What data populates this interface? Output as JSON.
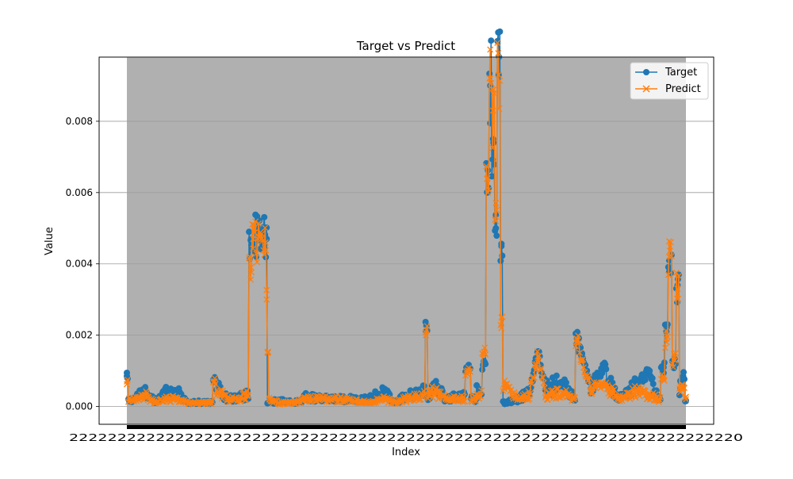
{
  "chart_data": {
    "type": "line",
    "title": "Target vs Predict",
    "xlabel": "Index",
    "ylabel": "Value",
    "ylim": [
      -0.0005,
      0.0098
    ],
    "y_ticks": [
      "0.000",
      "0.002",
      "0.004",
      "0.006",
      "0.008"
    ],
    "y_tick_values": [
      0,
      0.002,
      0.004,
      0.006,
      0.008
    ],
    "grid": "y-axis",
    "legend_position": "upper right",
    "plot_background": "#b0b0b0",
    "x_tick_labels_note": "dense overlapping tick labels, unreadable",
    "series": [
      {
        "name": "Target",
        "color": "#1f77b4",
        "marker": "circle",
        "anchors": [
          [
            0,
            0.00085
          ],
          [
            0.005,
            0.00015
          ],
          [
            0.02,
            0.0003
          ],
          [
            0.035,
            0.0004
          ],
          [
            0.05,
            0.00012
          ],
          [
            0.07,
            0.0004
          ],
          [
            0.09,
            0.00038
          ],
          [
            0.11,
            0.0001
          ],
          [
            0.15,
            0.00012
          ],
          [
            0.157,
            0.0008
          ],
          [
            0.162,
            0.0005
          ],
          [
            0.18,
            0.0002
          ],
          [
            0.2,
            0.00025
          ],
          [
            0.215,
            0.0003
          ],
          [
            0.222,
            0.0047
          ],
          [
            0.25,
            0.0047
          ],
          [
            0.252,
            0.0001
          ],
          [
            0.27,
            0.00015
          ],
          [
            0.3,
            0.0001
          ],
          [
            0.32,
            0.00025
          ],
          [
            0.35,
            0.0002
          ],
          [
            0.38,
            0.0002
          ],
          [
            0.43,
            0.0002
          ],
          [
            0.46,
            0.0004
          ],
          [
            0.48,
            0.0001
          ],
          [
            0.5,
            0.0003
          ],
          [
            0.532,
            0.0004
          ],
          [
            0.535,
            0.0021
          ],
          [
            0.54,
            0.0003
          ],
          [
            0.55,
            0.0006
          ],
          [
            0.57,
            0.0002
          ],
          [
            0.6,
            0.0003
          ],
          [
            0.61,
            0.0011
          ],
          [
            0.62,
            0.0002
          ],
          [
            0.63,
            0.0004
          ],
          [
            0.64,
            0.0012
          ],
          [
            0.645,
            0.006
          ],
          [
            0.65,
            0.009
          ],
          [
            0.655,
            0.0075
          ],
          [
            0.66,
            0.005
          ],
          [
            0.665,
            0.0093
          ],
          [
            0.67,
            0.0045
          ],
          [
            0.675,
            0.0001
          ],
          [
            0.7,
            0.0002
          ],
          [
            0.72,
            0.0004
          ],
          [
            0.735,
            0.0015
          ],
          [
            0.75,
            0.0005
          ],
          [
            0.78,
            0.00065
          ],
          [
            0.8,
            0.0002
          ],
          [
            0.805,
            0.0019
          ],
          [
            0.83,
            0.0005
          ],
          [
            0.84,
            0.0008
          ],
          [
            0.855,
            0.0011
          ],
          [
            0.86,
            0.0007
          ],
          [
            0.88,
            0.0002
          ],
          [
            0.91,
            0.0006
          ],
          [
            0.935,
            0.001
          ],
          [
            0.95,
            0.0002
          ],
          [
            0.96,
            0.0011
          ],
          [
            0.965,
            0.0021
          ],
          [
            0.97,
            0.0041
          ],
          [
            0.98,
            0.0012
          ],
          [
            0.985,
            0.0034
          ],
          [
            0.99,
            0.0005
          ],
          [
            0.995,
            0.00085
          ],
          [
            1.0,
            0.00015
          ]
        ]
      },
      {
        "name": "Predict",
        "color": "#ff7f0e",
        "marker": "x",
        "anchors": [
          [
            0,
            0.0007
          ],
          [
            0.005,
            0.00015
          ],
          [
            0.02,
            0.0002
          ],
          [
            0.035,
            0.0003
          ],
          [
            0.05,
            0.0001
          ],
          [
            0.07,
            0.0002
          ],
          [
            0.09,
            0.0002
          ],
          [
            0.11,
            0.0001
          ],
          [
            0.15,
            0.0001
          ],
          [
            0.157,
            0.0007
          ],
          [
            0.162,
            0.0004
          ],
          [
            0.18,
            0.0002
          ],
          [
            0.2,
            0.0002
          ],
          [
            0.215,
            0.0003
          ],
          [
            0.222,
            0.0039
          ],
          [
            0.226,
            0.0047
          ],
          [
            0.248,
            0.0046
          ],
          [
            0.25,
            0.003
          ],
          [
            0.252,
            0.0015
          ],
          [
            0.255,
            0.0002
          ],
          [
            0.27,
            0.0001
          ],
          [
            0.3,
            0.0001
          ],
          [
            0.32,
            0.0002
          ],
          [
            0.35,
            0.0002
          ],
          [
            0.38,
            0.0002
          ],
          [
            0.43,
            0.0001
          ],
          [
            0.46,
            0.0002
          ],
          [
            0.48,
            0.0001
          ],
          [
            0.5,
            0.0002
          ],
          [
            0.532,
            0.0003
          ],
          [
            0.535,
            0.002
          ],
          [
            0.54,
            0.0003
          ],
          [
            0.55,
            0.0004
          ],
          [
            0.57,
            0.0002
          ],
          [
            0.6,
            0.0002
          ],
          [
            0.61,
            0.001
          ],
          [
            0.62,
            0.0002
          ],
          [
            0.63,
            0.0003
          ],
          [
            0.64,
            0.0015
          ],
          [
            0.645,
            0.0064
          ],
          [
            0.65,
            0.0092
          ],
          [
            0.655,
            0.0083
          ],
          [
            0.66,
            0.0052
          ],
          [
            0.665,
            0.0093
          ],
          [
            0.67,
            0.0022
          ],
          [
            0.675,
            0.0005
          ],
          [
            0.7,
            0.0002
          ],
          [
            0.72,
            0.0003
          ],
          [
            0.735,
            0.0014
          ],
          [
            0.75,
            0.0003
          ],
          [
            0.78,
            0.0004
          ],
          [
            0.8,
            0.0002
          ],
          [
            0.805,
            0.0019
          ],
          [
            0.83,
            0.0004
          ],
          [
            0.84,
            0.0006
          ],
          [
            0.855,
            0.0006
          ],
          [
            0.86,
            0.0005
          ],
          [
            0.88,
            0.0002
          ],
          [
            0.91,
            0.0004
          ],
          [
            0.935,
            0.0003
          ],
          [
            0.95,
            0.0002
          ],
          [
            0.96,
            0.0008
          ],
          [
            0.965,
            0.0019
          ],
          [
            0.97,
            0.0042
          ],
          [
            0.98,
            0.0013
          ],
          [
            0.985,
            0.0033
          ],
          [
            0.99,
            0.0004
          ],
          [
            0.995,
            0.0006
          ],
          [
            1.0,
            0.0002
          ]
        ]
      }
    ]
  }
}
